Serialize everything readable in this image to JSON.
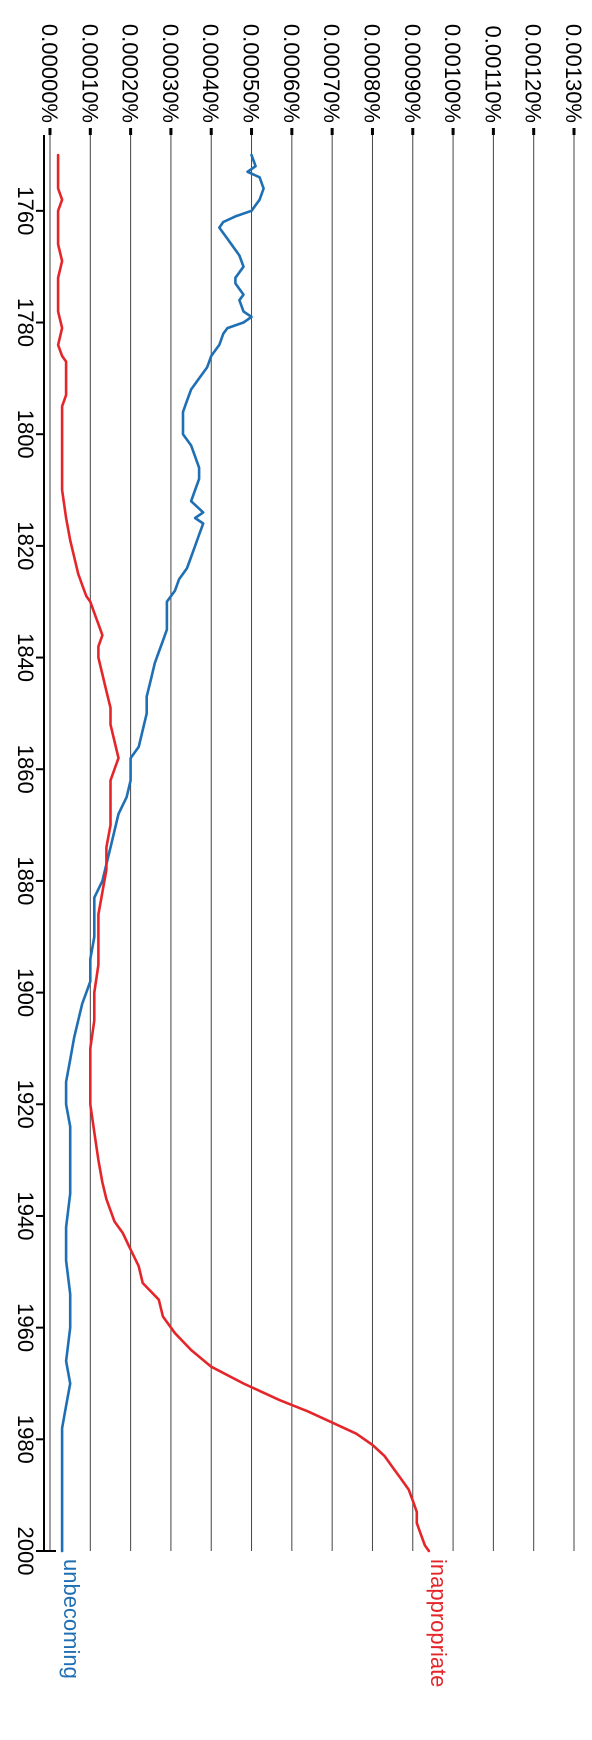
{
  "chart_data": {
    "type": "line",
    "x_ticks": [
      "1760",
      "1780",
      "1800",
      "1820",
      "1840",
      "1860",
      "1880",
      "1900",
      "1920",
      "1940",
      "1960",
      "1980",
      "2000"
    ],
    "y_ticks": [
      "0.00000%",
      "0.00010%",
      "0.00020%",
      "0.00030%",
      "0.00040%",
      "0.00050%",
      "0.00060%",
      "0.00070%",
      "0.00080%",
      "0.00090%",
      "0.00100%",
      "0.00110%",
      "0.00120%",
      "0.00130%"
    ],
    "xlim": [
      1750,
      2000
    ],
    "ylim": [
      0,
      0.0013
    ],
    "grid": true,
    "series": [
      {
        "name": "unbecoming",
        "color": "#1f6fb4",
        "points": [
          [
            1750,
            0.0005
          ],
          [
            1752,
            0.00051
          ],
          [
            1753,
            0.00049
          ],
          [
            1754,
            0.00052
          ],
          [
            1756,
            0.00053
          ],
          [
            1758,
            0.00052
          ],
          [
            1760,
            0.0005
          ],
          [
            1761,
            0.00046
          ],
          [
            1762,
            0.00043
          ],
          [
            1763,
            0.00042
          ],
          [
            1765,
            0.00044
          ],
          [
            1766,
            0.00045
          ],
          [
            1767,
            0.00046
          ],
          [
            1768,
            0.00047
          ],
          [
            1770,
            0.00048
          ],
          [
            1771,
            0.00047
          ],
          [
            1772,
            0.00046
          ],
          [
            1773,
            0.00046
          ],
          [
            1774,
            0.00047
          ],
          [
            1775,
            0.00048
          ],
          [
            1776,
            0.00047
          ],
          [
            1778,
            0.00048
          ],
          [
            1779,
            0.0005
          ],
          [
            1780,
            0.00048
          ],
          [
            1781,
            0.00044
          ],
          [
            1782,
            0.00043
          ],
          [
            1784,
            0.00042
          ],
          [
            1786,
            0.0004
          ],
          [
            1788,
            0.00039
          ],
          [
            1790,
            0.00037
          ],
          [
            1792,
            0.00035
          ],
          [
            1794,
            0.00034
          ],
          [
            1796,
            0.00033
          ],
          [
            1798,
            0.00033
          ],
          [
            1800,
            0.00033
          ],
          [
            1802,
            0.00035
          ],
          [
            1804,
            0.00036
          ],
          [
            1806,
            0.00037
          ],
          [
            1808,
            0.00037
          ],
          [
            1810,
            0.00036
          ],
          [
            1812,
            0.00035
          ],
          [
            1814,
            0.00038
          ],
          [
            1815,
            0.00036
          ],
          [
            1816,
            0.00038
          ],
          [
            1818,
            0.00037
          ],
          [
            1820,
            0.00036
          ],
          [
            1822,
            0.00035
          ],
          [
            1824,
            0.00034
          ],
          [
            1826,
            0.00032
          ],
          [
            1828,
            0.00031
          ],
          [
            1830,
            0.00029
          ],
          [
            1833,
            0.00029
          ],
          [
            1835,
            0.00029
          ],
          [
            1837,
            0.00028
          ],
          [
            1839,
            0.00027
          ],
          [
            1841,
            0.00026
          ],
          [
            1844,
            0.00025
          ],
          [
            1847,
            0.00024
          ],
          [
            1850,
            0.00024
          ],
          [
            1853,
            0.00023
          ],
          [
            1856,
            0.00022
          ],
          [
            1858,
            0.0002
          ],
          [
            1860,
            0.0002
          ],
          [
            1862,
            0.0002
          ],
          [
            1865,
            0.00019
          ],
          [
            1868,
            0.00017
          ],
          [
            1871,
            0.00016
          ],
          [
            1874,
            0.00015
          ],
          [
            1877,
            0.00014
          ],
          [
            1880,
            0.00013
          ],
          [
            1883,
            0.00011
          ],
          [
            1886,
            0.00011
          ],
          [
            1890,
            0.00011
          ],
          [
            1894,
            0.0001
          ],
          [
            1898,
            0.0001
          ],
          [
            1900,
            9e-05
          ],
          [
            1902,
            8e-05
          ],
          [
            1905,
            7e-05
          ],
          [
            1908,
            6e-05
          ],
          [
            1912,
            5e-05
          ],
          [
            1916,
            4e-05
          ],
          [
            1920,
            4e-05
          ],
          [
            1924,
            5e-05
          ],
          [
            1930,
            5e-05
          ],
          [
            1936,
            5e-05
          ],
          [
            1942,
            4e-05
          ],
          [
            1948,
            4e-05
          ],
          [
            1954,
            5e-05
          ],
          [
            1960,
            5e-05
          ],
          [
            1966,
            4e-05
          ],
          [
            1970,
            5e-05
          ],
          [
            1974,
            4e-05
          ],
          [
            1978,
            3e-05
          ],
          [
            1982,
            3e-05
          ],
          [
            1990,
            3e-05
          ],
          [
            1996,
            3e-05
          ],
          [
            2000,
            3e-05
          ]
        ]
      },
      {
        "name": "inappropriate",
        "color": "#e4262b",
        "points": [
          [
            1750,
            2e-05
          ],
          [
            1753,
            2e-05
          ],
          [
            1756,
            2e-05
          ],
          [
            1758,
            3e-05
          ],
          [
            1760,
            2e-05
          ],
          [
            1763,
            2e-05
          ],
          [
            1766,
            2e-05
          ],
          [
            1769,
            3e-05
          ],
          [
            1772,
            2e-05
          ],
          [
            1775,
            2e-05
          ],
          [
            1778,
            2e-05
          ],
          [
            1781,
            3e-05
          ],
          [
            1784,
            2e-05
          ],
          [
            1786,
            3e-05
          ],
          [
            1787,
            4e-05
          ],
          [
            1790,
            4e-05
          ],
          [
            1793,
            4e-05
          ],
          [
            1795,
            3e-05
          ],
          [
            1797,
            3e-05
          ],
          [
            1800,
            3e-05
          ],
          [
            1805,
            3e-05
          ],
          [
            1810,
            3e-05
          ],
          [
            1815,
            4e-05
          ],
          [
            1819,
            5e-05
          ],
          [
            1822,
            6e-05
          ],
          [
            1825,
            7e-05
          ],
          [
            1827,
            8e-05
          ],
          [
            1829,
            9e-05
          ],
          [
            1830,
            0.0001
          ],
          [
            1832,
            0.00011
          ],
          [
            1834,
            0.00012
          ],
          [
            1836,
            0.00013
          ],
          [
            1838,
            0.00012
          ],
          [
            1840,
            0.00012
          ],
          [
            1843,
            0.00013
          ],
          [
            1846,
            0.00014
          ],
          [
            1849,
            0.00015
          ],
          [
            1852,
            0.00015
          ],
          [
            1855,
            0.00016
          ],
          [
            1858,
            0.00017
          ],
          [
            1860,
            0.00016
          ],
          [
            1862,
            0.00015
          ],
          [
            1865,
            0.00015
          ],
          [
            1870,
            0.00015
          ],
          [
            1874,
            0.00014
          ],
          [
            1878,
            0.00014
          ],
          [
            1882,
            0.00013
          ],
          [
            1886,
            0.00012
          ],
          [
            1890,
            0.00012
          ],
          [
            1895,
            0.00012
          ],
          [
            1900,
            0.00011
          ],
          [
            1905,
            0.00011
          ],
          [
            1910,
            0.0001
          ],
          [
            1915,
            0.0001
          ],
          [
            1920,
            0.0001
          ],
          [
            1925,
            0.00011
          ],
          [
            1930,
            0.00012
          ],
          [
            1934,
            0.00013
          ],
          [
            1937,
            0.00014
          ],
          [
            1939,
            0.00015
          ],
          [
            1941,
            0.00016
          ],
          [
            1943,
            0.00018
          ],
          [
            1946,
            0.0002
          ],
          [
            1949,
            0.00022
          ],
          [
            1952,
            0.00023
          ],
          [
            1955,
            0.00027
          ],
          [
            1958,
            0.00028
          ],
          [
            1961,
            0.00031
          ],
          [
            1964,
            0.00035
          ],
          [
            1967,
            0.0004
          ],
          [
            1970,
            0.00048
          ],
          [
            1973,
            0.00057
          ],
          [
            1975,
            0.00064
          ],
          [
            1977,
            0.0007
          ],
          [
            1979,
            0.00076
          ],
          [
            1981,
            0.0008
          ],
          [
            1983,
            0.00083
          ],
          [
            1985,
            0.00085
          ],
          [
            1987,
            0.00087
          ],
          [
            1989,
            0.00089
          ],
          [
            1991,
            0.0009
          ],
          [
            1993,
            0.00091
          ],
          [
            1995,
            0.00091
          ],
          [
            1997,
            0.00092
          ],
          [
            1999,
            0.00093
          ],
          [
            2000,
            0.00094
          ]
        ]
      }
    ]
  }
}
